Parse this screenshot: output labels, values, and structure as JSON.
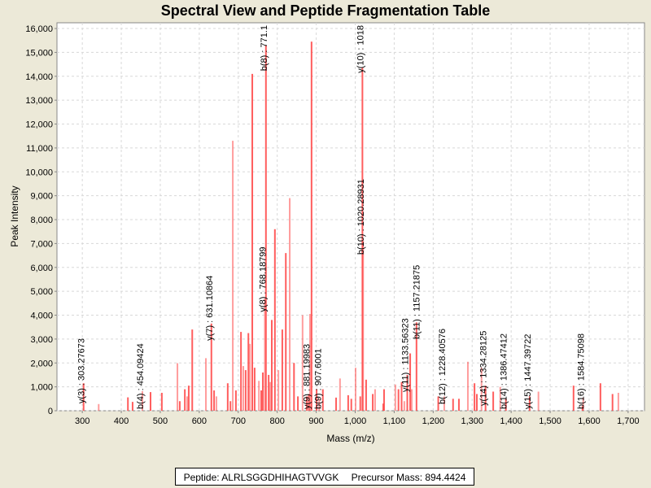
{
  "chart_data": {
    "type": "bar",
    "title": "Spectral View and Peptide Fragmentation Table",
    "xlabel": "Mass (m/z)",
    "ylabel": "Peak Intensity",
    "xlim": [
      235,
      1742
    ],
    "ylim": [
      0,
      16240
    ],
    "xticks": [
      300,
      400,
      500,
      600,
      700,
      800,
      900,
      1000,
      1100,
      1200,
      1300,
      1400,
      1500,
      1600,
      1700
    ],
    "yticks": [
      0,
      1000,
      2000,
      3000,
      4000,
      5000,
      6000,
      7000,
      8000,
      9000,
      10000,
      11000,
      12000,
      13000,
      14000,
      15000,
      16000
    ],
    "grid": true,
    "color": "#ff4d4d",
    "peaks": [
      [
        303.3,
        1150
      ],
      [
        342,
        280
      ],
      [
        417,
        560
      ],
      [
        429,
        370
      ],
      [
        454.1,
        820
      ],
      [
        475,
        780
      ],
      [
        504,
        750
      ],
      [
        544,
        1990
      ],
      [
        550,
        400
      ],
      [
        563,
        900
      ],
      [
        569,
        600
      ],
      [
        573,
        1050
      ],
      [
        582,
        3400
      ],
      [
        617,
        2200
      ],
      [
        631.1,
        3650
      ],
      [
        638,
        850
      ],
      [
        644,
        600
      ],
      [
        673,
        1150
      ],
      [
        680,
        400
      ],
      [
        686,
        11300
      ],
      [
        694,
        850
      ],
      [
        707,
        3300
      ],
      [
        713,
        1870
      ],
      [
        719,
        1700
      ],
      [
        726,
        3250
      ],
      [
        730,
        2800
      ],
      [
        736,
        14100
      ],
      [
        742,
        1800
      ],
      [
        753,
        1250
      ],
      [
        759,
        850
      ],
      [
        763,
        1600
      ],
      [
        768.2,
        4700
      ],
      [
        771,
        15300
      ],
      [
        778,
        1500
      ],
      [
        782,
        1200
      ],
      [
        786,
        3800
      ],
      [
        794,
        7600
      ],
      [
        803,
        1700
      ],
      [
        813,
        3400
      ],
      [
        822,
        6600
      ],
      [
        832,
        8900
      ],
      [
        843,
        2000
      ],
      [
        853,
        600
      ],
      [
        865,
        4000
      ],
      [
        876,
        600
      ],
      [
        881.2,
        700
      ],
      [
        884,
        4050
      ],
      [
        888,
        15450
      ],
      [
        901,
        900
      ],
      [
        907.6,
        500
      ],
      [
        917,
        900
      ],
      [
        951,
        550
      ],
      [
        961,
        1350
      ],
      [
        982,
        650
      ],
      [
        990,
        500
      ],
      [
        1001,
        1800
      ],
      [
        1013,
        600
      ],
      [
        1018.5,
        14350
      ],
      [
        1020.3,
        7100
      ],
      [
        1028,
        1300
      ],
      [
        1045,
        700
      ],
      [
        1051,
        900
      ],
      [
        1072,
        300
      ],
      [
        1074,
        900
      ],
      [
        1103,
        1100
      ],
      [
        1111,
        900
      ],
      [
        1119,
        1200
      ],
      [
        1126,
        400
      ],
      [
        1133.6,
        1500
      ],
      [
        1141,
        2400
      ],
      [
        1145,
        900
      ],
      [
        1157.2,
        3700
      ],
      [
        1213,
        600
      ],
      [
        1228.4,
        600
      ],
      [
        1251,
        500
      ],
      [
        1266,
        500
      ],
      [
        1289,
        2050
      ],
      [
        1306,
        1150
      ],
      [
        1312,
        700
      ],
      [
        1324,
        1800
      ],
      [
        1334.3,
        1050
      ],
      [
        1354,
        800
      ],
      [
        1372,
        1000
      ],
      [
        1386.5,
        500
      ],
      [
        1447.4,
        600
      ],
      [
        1470,
        800
      ],
      [
        1560,
        1050
      ],
      [
        1583,
        200
      ],
      [
        1584.8,
        550
      ],
      [
        1629,
        1150
      ],
      [
        1660,
        700
      ],
      [
        1675,
        750
      ]
    ],
    "annotations": [
      {
        "text": "y(3) : 303.27673",
        "mz": 303.3,
        "at": 270
      },
      {
        "text": "b(4) : 454.09424",
        "mz": 454.1,
        "at": 0
      },
      {
        "text": "y(7) : 631.10864",
        "mz": 631.1,
        "at": 2900
      },
      {
        "text": "y(8) : 768.18799",
        "mz": 768.2,
        "at": 4100
      },
      {
        "text": "b(8) : 771.1",
        "mz": 771,
        "at": 15300
      },
      {
        "text": "y(9) : 881.19983",
        "mz": 881.2,
        "at": 0
      },
      {
        "text": "b(9) : 907.6001",
        "mz": 907.6,
        "at": 0
      },
      {
        "text": "y(10) : 1018",
        "mz": 1018.5,
        "at": 14300
      },
      {
        "text": "b(10) : 1020.28931",
        "mz": 1020.3,
        "at": 6500
      },
      {
        "text": "y(11) : 1133.56323",
        "mz": 1133.6,
        "at": 750
      },
      {
        "text": "b(11) : 1157.21875",
        "mz": 1157.2,
        "at": 2960
      },
      {
        "text": "b(12) : 1228.40576",
        "mz": 1228.4,
        "at": 240
      },
      {
        "text": "y(14) : 1334.28125",
        "mz": 1334.3,
        "at": 170
      },
      {
        "text": "b(14) : 1386.47412",
        "mz": 1386.5,
        "at": 0
      },
      {
        "text": "y(15) : 1447.39722",
        "mz": 1447.4,
        "at": 0
      },
      {
        "text": "b(16) : 1584.75098",
        "mz": 1584.8,
        "at": 0
      }
    ]
  },
  "legend": {
    "peptide": "Peptide: ALRLSGGDHIHAGTVVGK",
    "precursor": "Precursor Mass: 894.4424"
  }
}
